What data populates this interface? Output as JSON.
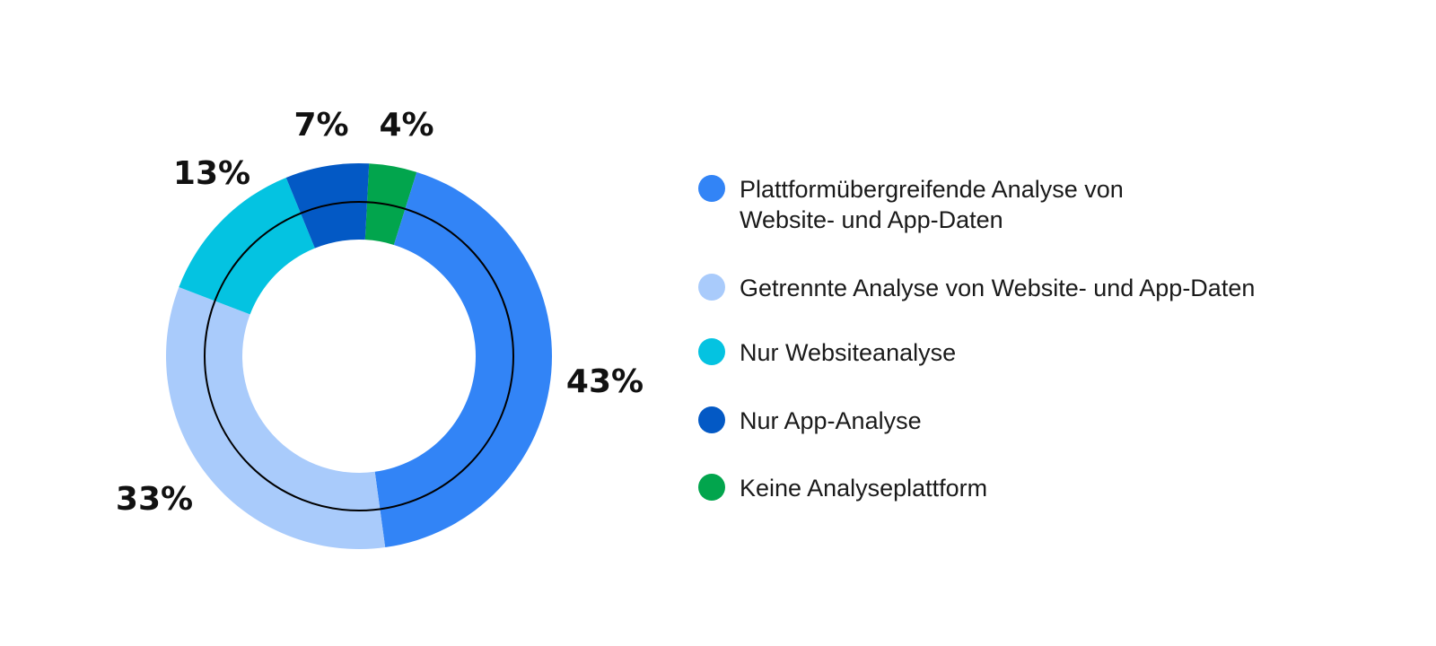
{
  "chart_data": {
    "type": "pie",
    "title": "",
    "categories": [
      "Plattformübergreifende Analyse von Website- und App-Daten",
      "Getrennte Analyse von Website- und App-Daten",
      "Nur Websiteanalyse",
      "Nur App-Analyse",
      "Keine Analyseplattform"
    ],
    "values": [
      43,
      33,
      13,
      7,
      4
    ],
    "value_labels": [
      "43%",
      "33%",
      "13%",
      "7%",
      "4%"
    ],
    "colors": [
      "#3284f6",
      "#a9cbfb",
      "#04c3e1",
      "#0359c5",
      "#02a54d"
    ],
    "legend_position": "right",
    "style": "donut",
    "has_inner_reference_ring": true
  }
}
